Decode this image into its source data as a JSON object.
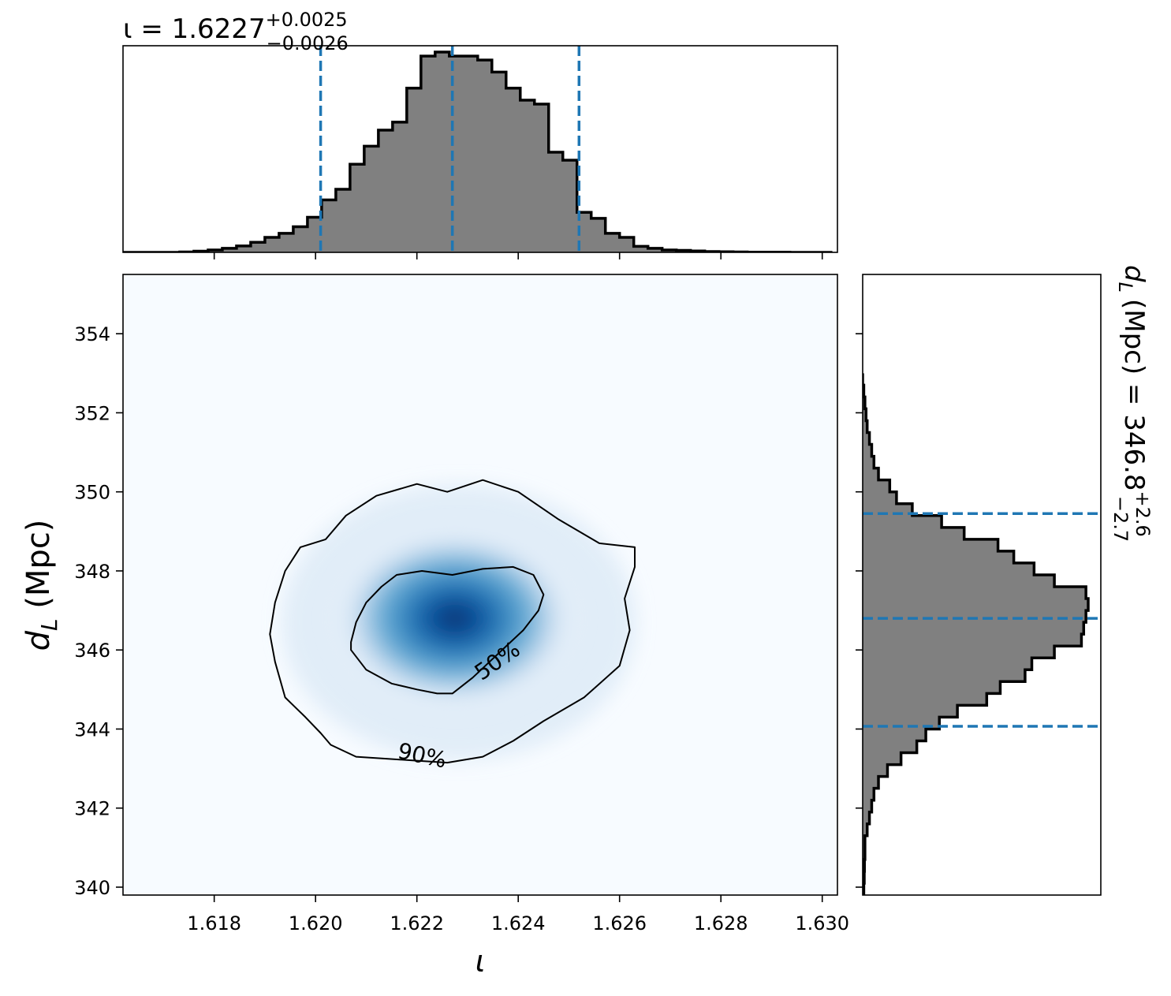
{
  "chart_data": {
    "type": "corner-plot",
    "x_param": {
      "symbol": "ι",
      "label": "ι",
      "median": 1.6227,
      "err_plus": 0.0025,
      "err_minus": 0.0026,
      "title_main": "ι = 1.6227",
      "title_sup": "+0.0025",
      "title_sub": "−0.0026",
      "quantile_lines": [
        1.6201,
        1.6227,
        1.6252
      ],
      "xlim": [
        1.6162,
        1.6303
      ],
      "ticks": [
        1.618,
        1.62,
        1.622,
        1.624,
        1.626,
        1.628,
        1.63
      ],
      "tick_labels": [
        "1.618",
        "1.620",
        "1.622",
        "1.624",
        "1.626",
        "1.628",
        "1.630"
      ]
    },
    "y_param": {
      "label_main": "d",
      "label_sub": "L",
      "label_unit": " (Mpc)",
      "median": 346.8,
      "err_plus": 2.6,
      "err_minus": 2.7,
      "title_main": "(Mpc) = 346.8",
      "title_sup": "+2.6",
      "title_sub": "−2.7",
      "quantile_lines": [
        344.07,
        346.8,
        349.45
      ],
      "ylim": [
        339.8,
        355.5
      ],
      "ticks": [
        340,
        342,
        344,
        346,
        348,
        350,
        352,
        354
      ],
      "tick_labels": [
        "340",
        "342",
        "344",
        "346",
        "348",
        "350",
        "352",
        "354"
      ]
    },
    "histogram_x": {
      "bin_edges": [
        1.6162,
        1.61648,
        1.61676,
        1.61704,
        1.61732,
        1.6176,
        1.61788,
        1.61816,
        1.61844,
        1.61872,
        1.619,
        1.61928,
        1.61956,
        1.61984,
        1.62012,
        1.6204,
        1.62068,
        1.62096,
        1.62124,
        1.62152,
        1.6218,
        1.62208,
        1.62236,
        1.62264,
        1.62292,
        1.6232,
        1.62348,
        1.62376,
        1.62404,
        1.62432,
        1.6246,
        1.62488,
        1.62516,
        1.62544,
        1.62572,
        1.626,
        1.62628,
        1.62656,
        1.62684,
        1.62712,
        1.6274,
        1.62768,
        1.62796,
        1.62824,
        1.62852,
        1.6288,
        1.62908,
        1.62936,
        1.62964,
        1.62992,
        1.6302
      ],
      "density": [
        0.0,
        0.0,
        0.0,
        0.0,
        0.002,
        0.006,
        0.012,
        0.02,
        0.032,
        0.05,
        0.075,
        0.095,
        0.128,
        0.175,
        0.262,
        0.315,
        0.44,
        0.53,
        0.61,
        0.65,
        0.82,
        0.98,
        1.0,
        0.98,
        0.98,
        0.96,
        0.9,
        0.82,
        0.76,
        0.74,
        0.5,
        0.46,
        0.2,
        0.17,
        0.095,
        0.075,
        0.03,
        0.02,
        0.012,
        0.01,
        0.007,
        0.004,
        0.003,
        0.002,
        0.001,
        0.001,
        0.001,
        0.0,
        0.0,
        0.0
      ]
    },
    "histogram_y": {
      "bin_edges": [
        339.8,
        340.1,
        340.4,
        340.7,
        341.0,
        341.3,
        341.6,
        341.9,
        342.2,
        342.5,
        342.8,
        343.1,
        343.4,
        343.7,
        344.0,
        344.3,
        344.6,
        344.9,
        345.2,
        345.5,
        345.8,
        346.1,
        346.4,
        346.7,
        347.0,
        347.3,
        347.6,
        347.9,
        348.2,
        348.5,
        348.8,
        349.1,
        349.4,
        349.7,
        350.0,
        350.3,
        350.6,
        350.9,
        351.2,
        351.5,
        351.8,
        352.1,
        352.4,
        352.7,
        353.0,
        353.3,
        353.6,
        353.9,
        354.2,
        354.5,
        354.8,
        355.1
      ],
      "density": [
        0.005,
        0.007,
        0.008,
        0.01,
        0.01,
        0.02,
        0.03,
        0.04,
        0.05,
        0.07,
        0.11,
        0.17,
        0.24,
        0.28,
        0.34,
        0.42,
        0.55,
        0.61,
        0.72,
        0.75,
        0.85,
        0.97,
        0.98,
        0.99,
        1.0,
        0.99,
        0.85,
        0.76,
        0.67,
        0.6,
        0.45,
        0.35,
        0.22,
        0.15,
        0.12,
        0.07,
        0.05,
        0.04,
        0.03,
        0.02,
        0.015,
        0.01,
        0.005,
        0.0,
        0.0,
        0.0,
        0.0,
        0.0,
        0.0,
        0.0,
        0.0
      ],
      "stairs_visible_range": [
        340.0,
        352.8
      ]
    },
    "density_2d": {
      "colormap": "Blues",
      "center": [
        1.62275,
        346.8
      ],
      "contours": [
        {
          "label": "50%",
          "points": [
            [
              1.6207,
              346.0
            ],
            [
              1.621,
              345.5
            ],
            [
              1.6215,
              345.15
            ],
            [
              1.622,
              345.0
            ],
            [
              1.6224,
              344.9
            ],
            [
              1.6227,
              344.9
            ],
            [
              1.6231,
              345.3
            ],
            [
              1.6236,
              345.9
            ],
            [
              1.6241,
              346.5
            ],
            [
              1.6244,
              347.0
            ],
            [
              1.6245,
              347.4
            ],
            [
              1.6243,
              347.9
            ],
            [
              1.6239,
              348.1
            ],
            [
              1.6233,
              348.05
            ],
            [
              1.6227,
              347.9
            ],
            [
              1.6221,
              348.0
            ],
            [
              1.6216,
              347.9
            ],
            [
              1.6213,
              347.6
            ],
            [
              1.621,
              347.2
            ],
            [
              1.6208,
              346.7
            ],
            [
              1.6207,
              346.2
            ]
          ]
        },
        {
          "label": "90%",
          "points": [
            [
              1.6203,
              343.6
            ],
            [
              1.6208,
              343.3
            ],
            [
              1.6214,
              343.25
            ],
            [
              1.622,
              343.2
            ],
            [
              1.6226,
              343.15
            ],
            [
              1.6233,
              343.3
            ],
            [
              1.6239,
              343.7
            ],
            [
              1.6245,
              344.2
            ],
            [
              1.6253,
              344.8
            ],
            [
              1.626,
              345.6
            ],
            [
              1.6262,
              346.5
            ],
            [
              1.6261,
              347.3
            ],
            [
              1.6263,
              348.1
            ],
            [
              1.6263,
              348.6
            ],
            [
              1.6256,
              348.7
            ],
            [
              1.6248,
              349.3
            ],
            [
              1.624,
              350.0
            ],
            [
              1.6233,
              350.3
            ],
            [
              1.6226,
              350.0
            ],
            [
              1.622,
              350.2
            ],
            [
              1.6212,
              349.9
            ],
            [
              1.6206,
              349.4
            ],
            [
              1.6202,
              348.8
            ],
            [
              1.6197,
              348.6
            ],
            [
              1.6194,
              348.0
            ],
            [
              1.6192,
              347.2
            ],
            [
              1.6191,
              346.4
            ],
            [
              1.6192,
              345.7
            ],
            [
              1.6194,
              344.8
            ],
            [
              1.6198,
              344.3
            ],
            [
              1.6201,
              343.9
            ]
          ]
        }
      ],
      "contour_labels": [
        {
          "text": "50%",
          "x": 1.6236,
          "y": 345.7
        },
        {
          "text": "90%",
          "x": 1.6221,
          "y": 343.3
        }
      ]
    },
    "colors": {
      "hist_fill": "#808080",
      "hist_edge": "#000000",
      "quantile_line": "#1f77b4",
      "background_density": "#f7fbff"
    },
    "grid": false,
    "legend": "none"
  }
}
